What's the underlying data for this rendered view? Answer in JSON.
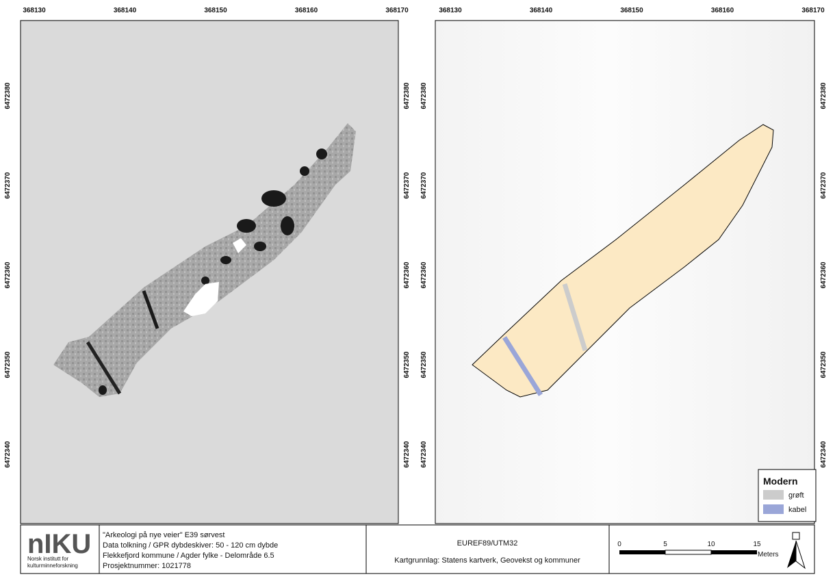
{
  "left_map": {
    "x_ticks": [
      "368130",
      "368140",
      "368150",
      "368160",
      "368170"
    ],
    "y_ticks": [
      "6472380",
      "6472370",
      "6472360",
      "6472350",
      "6472340"
    ]
  },
  "right_map": {
    "x_ticks": [
      "368130",
      "368140",
      "368150",
      "368160",
      "368170"
    ],
    "y_ticks": [
      "6472380",
      "6472370",
      "6472360",
      "6472350",
      "6472340"
    ],
    "legend": {
      "title": "Modern",
      "items": [
        {
          "name": "grøft",
          "color": "#cccccc"
        },
        {
          "name": "kabel",
          "color": "#9aa6d8"
        }
      ]
    }
  },
  "footer": {
    "logo": "nIKU",
    "institute": [
      "Norsk institutt for",
      "kulturminneforskning"
    ],
    "project": [
      "\"Arkeologi på nye veier\" E39 sørvest",
      "Data tolkning / GPR dybdeskiver: 50 - 120 cm dybde",
      "Flekkefjord kommune / Agder fylke - Delområde 6.5",
      "Prosjektnummer: 1021778"
    ],
    "crs": "EUREF89/UTM32",
    "source": "Kartgrunnlag: Statens kartverk, Geovekst og kommuner",
    "scale": {
      "ticks": [
        "0",
        "5",
        "10",
        "15"
      ],
      "unit": "Meters"
    }
  }
}
